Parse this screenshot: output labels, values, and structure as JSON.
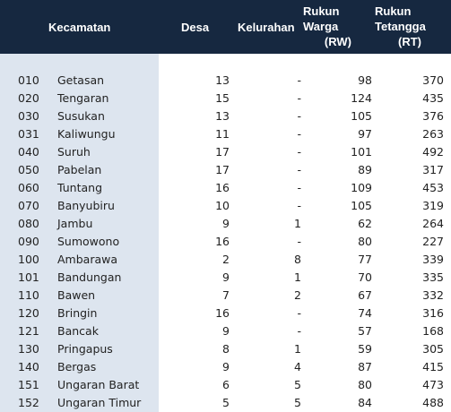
{
  "header": {
    "kecamatan": "Kecamatan",
    "desa": "Desa",
    "kelurahan": "Kelurahan",
    "rw_line1": "Rukun",
    "rw_line2": "Warga",
    "rw_line3": "(RW)",
    "rt_line1": "Rukun",
    "rt_line2": "Tetangga",
    "rt_line3": "(RT)"
  },
  "rows": [
    {
      "code": "010",
      "name": "Getasan",
      "desa": "13",
      "kel": "-",
      "rw": "98",
      "rt": "370"
    },
    {
      "code": "020",
      "name": "Tengaran",
      "desa": "15",
      "kel": "-",
      "rw": "124",
      "rt": "435"
    },
    {
      "code": "030",
      "name": "Susukan",
      "desa": "13",
      "kel": "-",
      "rw": "105",
      "rt": "376"
    },
    {
      "code": "031",
      "name": "Kaliwungu",
      "desa": "11",
      "kel": "-",
      "rw": "97",
      "rt": "263"
    },
    {
      "code": "040",
      "name": "Suruh",
      "desa": "17",
      "kel": "-",
      "rw": "101",
      "rt": "492"
    },
    {
      "code": "050",
      "name": "Pabelan",
      "desa": "17",
      "kel": "-",
      "rw": "89",
      "rt": "317"
    },
    {
      "code": "060",
      "name": "Tuntang",
      "desa": "16",
      "kel": "-",
      "rw": "109",
      "rt": "453"
    },
    {
      "code": "070",
      "name": "Banyubiru",
      "desa": "10",
      "kel": "-",
      "rw": "105",
      "rt": "319"
    },
    {
      "code": "080",
      "name": "Jambu",
      "desa": "9",
      "kel": "1",
      "rw": "62",
      "rt": "264"
    },
    {
      "code": "090",
      "name": "Sumowono",
      "desa": "16",
      "kel": "-",
      "rw": "80",
      "rt": "227"
    },
    {
      "code": "100",
      "name": "Ambarawa",
      "desa": "2",
      "kel": "8",
      "rw": "77",
      "rt": "339"
    },
    {
      "code": "101",
      "name": "Bandungan",
      "desa": "9",
      "kel": "1",
      "rw": "70",
      "rt": "335"
    },
    {
      "code": "110",
      "name": "Bawen",
      "desa": "7",
      "kel": "2",
      "rw": "67",
      "rt": "332"
    },
    {
      "code": "120",
      "name": "Bringin",
      "desa": "16",
      "kel": "-",
      "rw": "74",
      "rt": "316"
    },
    {
      "code": "121",
      "name": "Bancak",
      "desa": "9",
      "kel": "-",
      "rw": "57",
      "rt": "168"
    },
    {
      "code": "130",
      "name": "Pringapus",
      "desa": "8",
      "kel": "1",
      "rw": "59",
      "rt": "305"
    },
    {
      "code": "140",
      "name": "Bergas",
      "desa": "9",
      "kel": "4",
      "rw": "87",
      "rt": "415"
    },
    {
      "code": "151",
      "name": "Ungaran Barat",
      "desa": "6",
      "kel": "5",
      "rw": "80",
      "rt": "473"
    },
    {
      "code": "152",
      "name": "Ungaran Timur",
      "desa": "5",
      "kel": "5",
      "rw": "84",
      "rt": "488"
    }
  ]
}
